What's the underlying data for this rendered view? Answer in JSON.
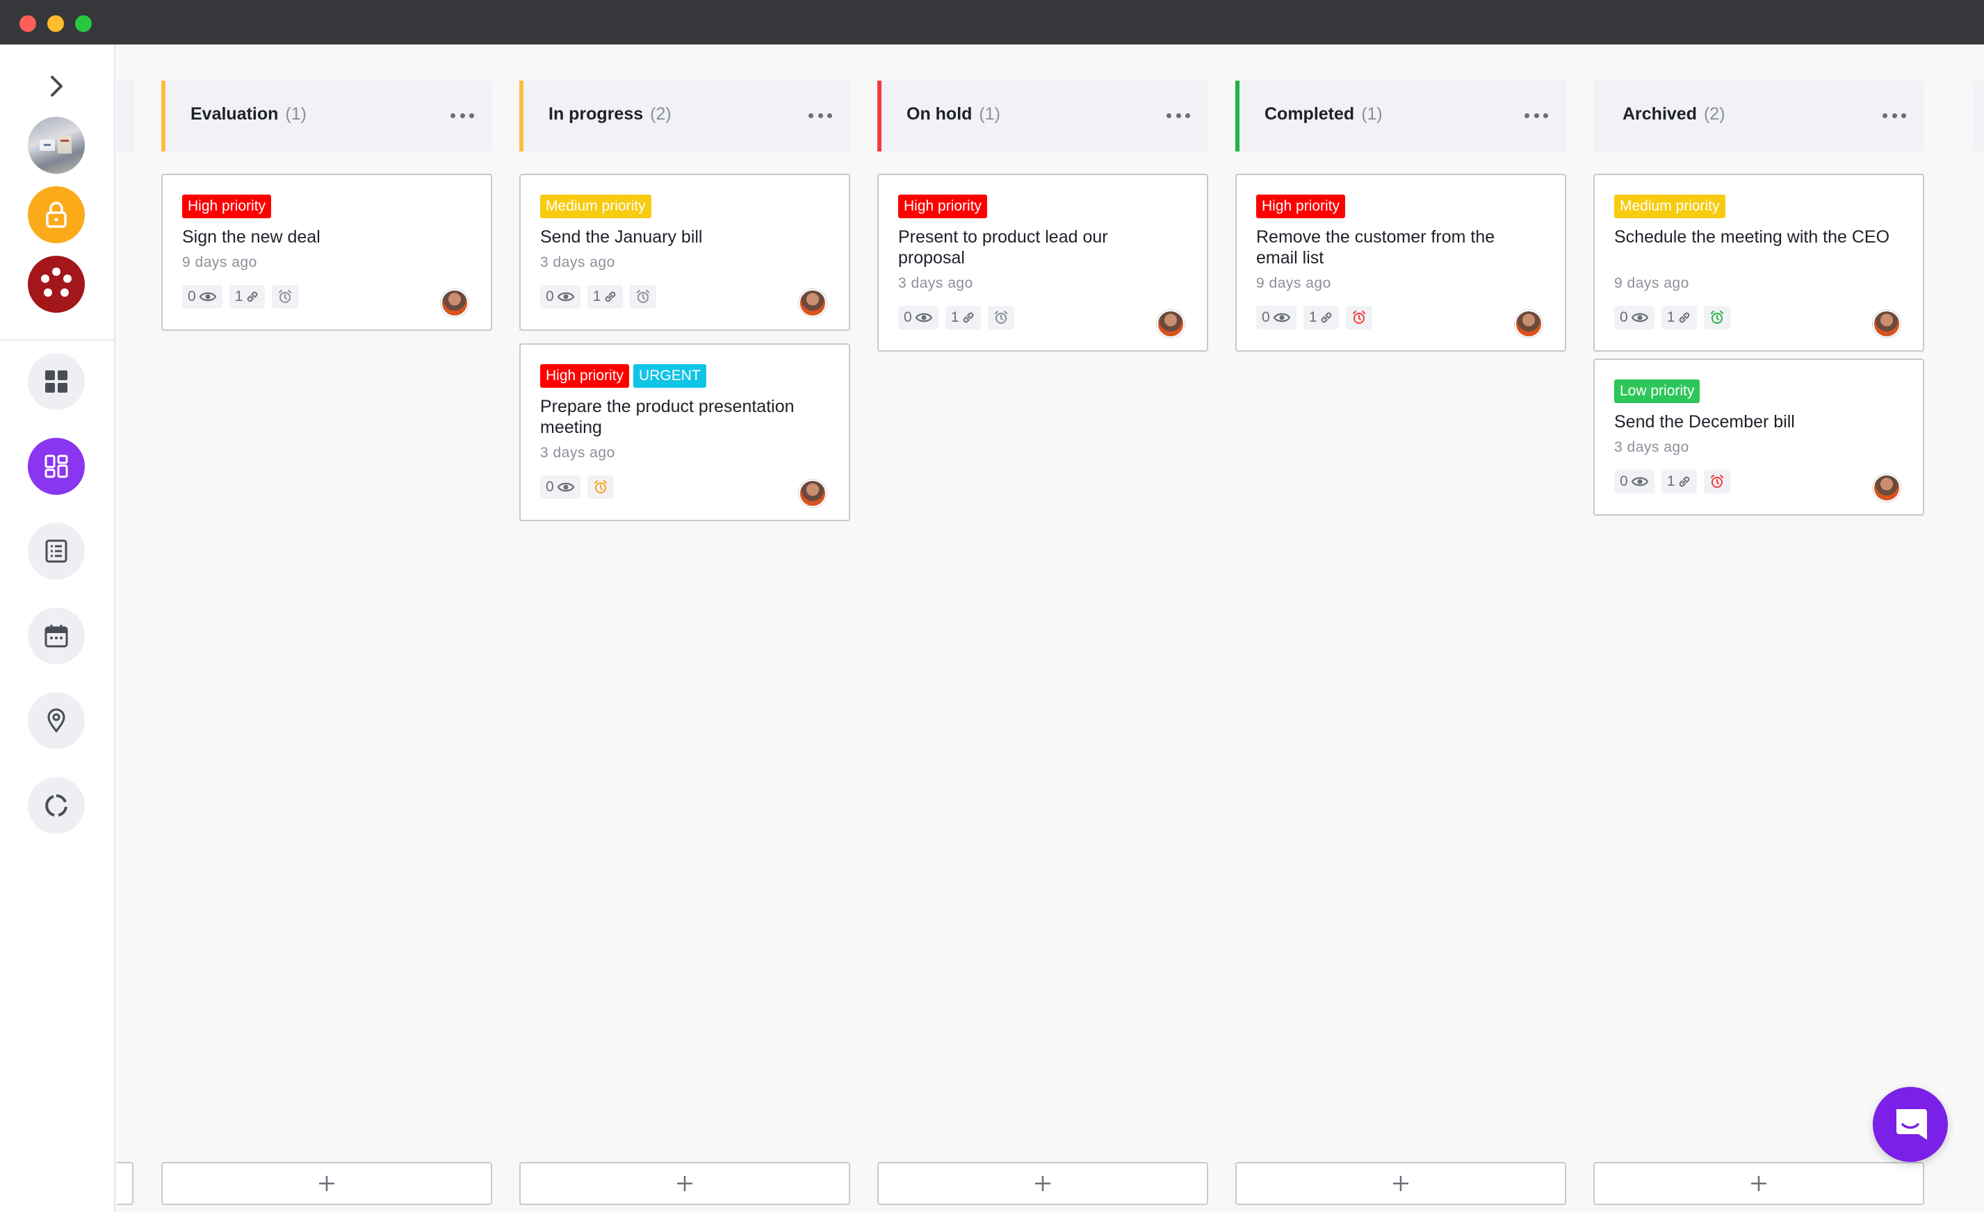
{
  "colors": {
    "evaluation": "#fbbe40",
    "in_progress": "#fbbe40",
    "on_hold": "#f23d3d",
    "completed": "#22b443",
    "archived": "#f1f2f5",
    "high_priority": "#fd0000",
    "medium_priority": "#f7cb0f",
    "low_priority": "#2dc658",
    "urgent": "#0fc4e6",
    "fab": "#7b20e6"
  },
  "sidebar": {
    "expand_icon": "chevron-right-icon",
    "items": [
      {
        "name": "workspace-avatar",
        "icon": "photo-avatar"
      },
      {
        "name": "lock",
        "icon": "lock-icon"
      },
      {
        "name": "app-logo",
        "icon": "dots-circle-icon"
      },
      {
        "name": "dashboard",
        "icon": "grid-icon"
      },
      {
        "name": "board",
        "icon": "board-icon"
      },
      {
        "name": "list",
        "icon": "list-icon"
      },
      {
        "name": "calendar",
        "icon": "calendar-icon"
      },
      {
        "name": "map",
        "icon": "map-pin-icon"
      },
      {
        "name": "reports",
        "icon": "circle-progress-icon"
      }
    ]
  },
  "columns": [
    {
      "title": "Evaluation",
      "count": "(1)",
      "cards": [
        {
          "tags": [
            {
              "label": "High priority",
              "kind": "high_priority"
            }
          ],
          "title": "Sign the new deal",
          "time": "9 days ago",
          "views": "0",
          "links": "1",
          "alarm": "gray"
        }
      ]
    },
    {
      "title": "In progress",
      "count": "(2)",
      "cards": [
        {
          "tags": [
            {
              "label": "Medium priority",
              "kind": "medium_priority"
            }
          ],
          "title": "Send the January bill",
          "time": "3 days ago",
          "views": "0",
          "links": "1",
          "alarm": "gray"
        },
        {
          "tags": [
            {
              "label": "High priority",
              "kind": "high_priority"
            },
            {
              "label": "URGENT",
              "kind": "urgent"
            }
          ],
          "title": "Prepare the product presentation meeting",
          "time": "3 days ago",
          "views": "0",
          "links": null,
          "alarm": "orange"
        }
      ]
    },
    {
      "title": "On hold",
      "count": "(1)",
      "cards": [
        {
          "tags": [
            {
              "label": "High priority",
              "kind": "high_priority"
            }
          ],
          "title": "Present to product lead our proposal",
          "time": "3 days ago",
          "views": "0",
          "links": "1",
          "alarm": "gray"
        }
      ]
    },
    {
      "title": "Completed",
      "count": "(1)",
      "cards": [
        {
          "tags": [
            {
              "label": "High priority",
              "kind": "high_priority"
            }
          ],
          "title": "Remove the customer from the email list",
          "time": "9 days ago",
          "views": "0",
          "links": "1",
          "alarm": "red"
        }
      ]
    },
    {
      "title": "Archived",
      "count": "(2)",
      "cards": [
        {
          "tags": [
            {
              "label": "Medium priority",
              "kind": "medium_priority"
            }
          ],
          "title": "Schedule the meeting with the CEO",
          "time": "9 days ago",
          "views": "0",
          "links": "1",
          "alarm": "green"
        },
        {
          "tags": [
            {
              "label": "Low priority",
              "kind": "low_priority"
            }
          ],
          "title": "Send the December bill",
          "time": "3 days ago",
          "views": "0",
          "links": "1",
          "alarm": "red"
        }
      ]
    }
  ],
  "fab_icon": "chat-icon"
}
